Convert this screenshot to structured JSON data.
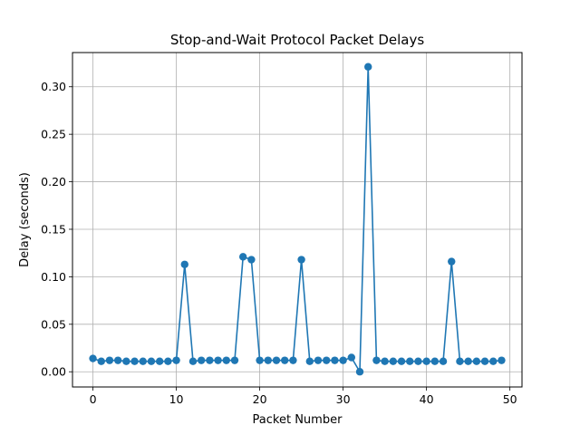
{
  "chart_data": {
    "type": "line",
    "title": "Stop-and-Wait Protocol Packet Delays",
    "xlabel": "Packet Number",
    "ylabel": "Delay (seconds)",
    "xlim": [
      -2.45,
      51.45
    ],
    "ylim": [
      -0.016,
      0.336
    ],
    "x_ticks": [
      0,
      10,
      20,
      30,
      40,
      50
    ],
    "y_ticks": [
      0.0,
      0.05,
      0.1,
      0.15,
      0.2,
      0.25,
      0.3
    ],
    "grid": true,
    "marker": "circle",
    "series": [
      {
        "color": "#1f77b4",
        "x": [
          0,
          1,
          2,
          3,
          4,
          5,
          6,
          7,
          8,
          9,
          10,
          11,
          12,
          13,
          14,
          15,
          16,
          17,
          18,
          19,
          20,
          21,
          22,
          23,
          24,
          25,
          26,
          27,
          28,
          29,
          30,
          31,
          32,
          33,
          34,
          35,
          36,
          37,
          38,
          39,
          40,
          41,
          42,
          43,
          44,
          45,
          46,
          47,
          48,
          49
        ],
        "y": [
          0.014,
          0.011,
          0.012,
          0.012,
          0.011,
          0.011,
          0.011,
          0.011,
          0.011,
          0.011,
          0.012,
          0.113,
          0.011,
          0.012,
          0.012,
          0.012,
          0.012,
          0.012,
          0.121,
          0.118,
          0.012,
          0.012,
          0.012,
          0.012,
          0.012,
          0.118,
          0.011,
          0.012,
          0.012,
          0.012,
          0.012,
          0.015,
          0.0,
          0.321,
          0.012,
          0.011,
          0.011,
          0.011,
          0.011,
          0.011,
          0.011,
          0.011,
          0.011,
          0.116,
          0.011,
          0.011,
          0.011,
          0.011,
          0.011,
          0.012
        ]
      }
    ]
  }
}
